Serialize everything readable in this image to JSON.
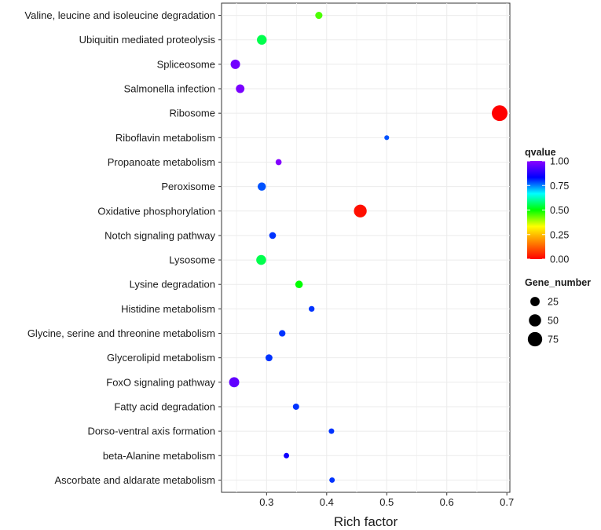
{
  "chart_data": {
    "type": "scatter",
    "title": "",
    "xlabel": "Rich factor",
    "ylabel": "",
    "xlim": [
      0.225,
      0.705
    ],
    "xticks": [
      0.3,
      0.4,
      0.5,
      0.6,
      0.7
    ],
    "xtick_labels": [
      "0.3",
      "0.4",
      "0.5",
      "0.6",
      "0.7"
    ],
    "grid": true,
    "categories": [
      "Valine, leucine and isoleucine degradation",
      "Ubiquitin mediated proteolysis",
      "Spliceosome",
      "Salmonella infection",
      "Ribosome",
      "Riboflavin metabolism",
      "Propanoate metabolism",
      "Peroxisome",
      "Oxidative phosphorylation",
      "Notch signaling pathway",
      "Lysosome",
      "Lysine degradation",
      "Histidine metabolism",
      "Glycine, serine and threonine metabolism",
      "Glycerolipid metabolism",
      "FoxO signaling pathway",
      "Fatty acid degradation",
      "Dorso-ventral axis formation",
      "beta-Alanine metabolism",
      "Ascorbate and aldarate metabolism"
    ],
    "points": [
      {
        "pathway": "Valine, leucine and isoleucine degradation",
        "rich_factor": 0.387,
        "gene_number": 12,
        "qvalue": 0.45
      },
      {
        "pathway": "Ubiquitin mediated proteolysis",
        "rich_factor": 0.292,
        "gene_number": 28,
        "qvalue": 0.55
      },
      {
        "pathway": "Spliceosome",
        "rich_factor": 0.248,
        "gene_number": 26,
        "qvalue": 0.97
      },
      {
        "pathway": "Salmonella infection",
        "rich_factor": 0.256,
        "gene_number": 20,
        "qvalue": 0.98
      },
      {
        "pathway": "Ribosome",
        "rich_factor": 0.688,
        "gene_number": 92,
        "qvalue": 0.0
      },
      {
        "pathway": "Riboflavin metabolism",
        "rich_factor": 0.5,
        "gene_number": 3,
        "qvalue": 0.78
      },
      {
        "pathway": "Propanoate metabolism",
        "rich_factor": 0.32,
        "gene_number": 7,
        "qvalue": 0.99
      },
      {
        "pathway": "Peroxisome",
        "rich_factor": 0.292,
        "gene_number": 18,
        "qvalue": 0.78
      },
      {
        "pathway": "Oxidative phosphorylation",
        "rich_factor": 0.456,
        "gene_number": 56,
        "qvalue": 0.02
      },
      {
        "pathway": "Notch signaling pathway",
        "rich_factor": 0.31,
        "gene_number": 10,
        "qvalue": 0.8
      },
      {
        "pathway": "Lysosome",
        "rich_factor": 0.291,
        "gene_number": 29,
        "qvalue": 0.55
      },
      {
        "pathway": "Lysine degradation",
        "rich_factor": 0.354,
        "gene_number": 14,
        "qvalue": 0.5
      },
      {
        "pathway": "Histidine metabolism",
        "rich_factor": 0.375,
        "gene_number": 6,
        "qvalue": 0.8
      },
      {
        "pathway": "Glycine, serine and threonine metabolism",
        "rich_factor": 0.326,
        "gene_number": 9,
        "qvalue": 0.8
      },
      {
        "pathway": "Glycerolipid metabolism",
        "rich_factor": 0.304,
        "gene_number": 11,
        "qvalue": 0.8
      },
      {
        "pathway": "FoxO signaling pathway",
        "rich_factor": 0.246,
        "gene_number": 31,
        "qvalue": 0.95
      },
      {
        "pathway": "Fatty acid degradation",
        "rich_factor": 0.349,
        "gene_number": 8,
        "qvalue": 0.8
      },
      {
        "pathway": "Dorso-ventral axis formation",
        "rich_factor": 0.408,
        "gene_number": 5,
        "qvalue": 0.8
      },
      {
        "pathway": "beta-Alanine metabolism",
        "rich_factor": 0.333,
        "gene_number": 5,
        "qvalue": 0.85
      },
      {
        "pathway": "Ascorbate and aldarate metabolism",
        "rich_factor": 0.409,
        "gene_number": 5,
        "qvalue": 0.8
      }
    ],
    "color_legend": {
      "title": "qvalue",
      "range": [
        0.0,
        1.0
      ],
      "tick_values": [
        0.0,
        0.25,
        0.5,
        0.75,
        1.0
      ],
      "tick_labels": [
        "0.00",
        "0.25",
        "0.50",
        "0.75",
        "1.00"
      ],
      "colors": [
        "#ff0000",
        "#ff7f00",
        "#ffff00",
        "#00ff00",
        "#00ffff",
        "#0000ff",
        "#8b00ff"
      ]
    },
    "size_legend": {
      "title": "Gene_number",
      "values": [
        25,
        50,
        75
      ],
      "labels": [
        "25",
        "50",
        "75"
      ]
    }
  }
}
